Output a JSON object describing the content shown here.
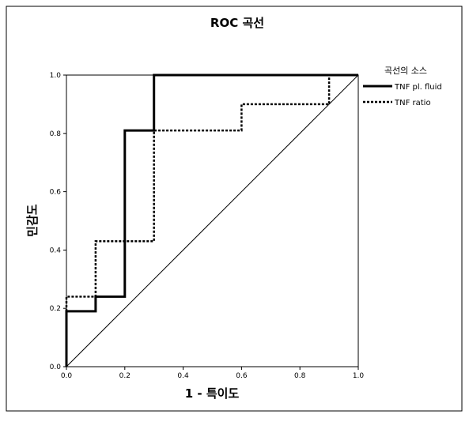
{
  "chart_data": {
    "type": "line",
    "title": "ROC 곡선",
    "xlabel": "1 - 특이도",
    "ylabel": "민감도",
    "xlim": [
      0.0,
      1.0
    ],
    "ylim": [
      0.0,
      1.0
    ],
    "x_ticks": [
      "0.0",
      "0.2",
      "0.4",
      "0.6",
      "0.8",
      "1.0"
    ],
    "y_ticks": [
      "0.0",
      "0.2",
      "0.4",
      "0.6",
      "0.8",
      "1.0"
    ],
    "grid": false,
    "legend": {
      "title": "곡선의 소스",
      "position": "top-right outside"
    },
    "series": [
      {
        "name": "TNF pl. fluid",
        "style": "solid",
        "color": "#000000",
        "x": [
          0.0,
          0.0,
          0.1,
          0.1,
          0.2,
          0.2,
          0.3,
          0.3,
          1.0
        ],
        "y": [
          0.0,
          0.19,
          0.19,
          0.24,
          0.24,
          0.81,
          0.81,
          1.0,
          1.0
        ]
      },
      {
        "name": "TNF ratio",
        "style": "dashed",
        "color": "#000000",
        "x": [
          0.0,
          0.0,
          0.1,
          0.1,
          0.3,
          0.3,
          0.6,
          0.6,
          0.9,
          0.9,
          1.0
        ],
        "y": [
          0.0,
          0.24,
          0.24,
          0.43,
          0.43,
          0.81,
          0.81,
          0.9,
          0.9,
          1.0,
          1.0
        ]
      }
    ]
  }
}
